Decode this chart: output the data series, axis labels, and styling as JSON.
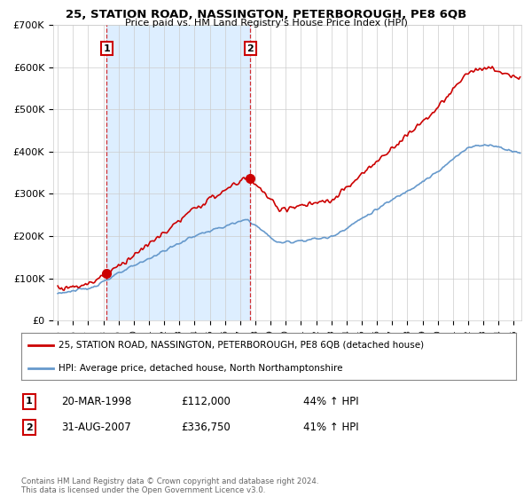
{
  "title": "25, STATION ROAD, NASSINGTON, PETERBOROUGH, PE8 6QB",
  "subtitle": "Price paid vs. HM Land Registry's House Price Index (HPI)",
  "legend_line1": "25, STATION ROAD, NASSINGTON, PETERBOROUGH, PE8 6QB (detached house)",
  "legend_line2": "HPI: Average price, detached house, North Northamptonshire",
  "annotation1_date": "20-MAR-1998",
  "annotation1_price": "£112,000",
  "annotation1_hpi": "44% ↑ HPI",
  "annotation2_date": "31-AUG-2007",
  "annotation2_price": "£336,750",
  "annotation2_hpi": "41% ↑ HPI",
  "footer": "Contains HM Land Registry data © Crown copyright and database right 2024.\nThis data is licensed under the Open Government Licence v3.0.",
  "red_color": "#cc0000",
  "blue_color": "#6699cc",
  "shade_color": "#ddeeff",
  "grid_color": "#cccccc",
  "background_color": "#ffffff",
  "sale1_x": 1998.22,
  "sale1_y": 112000,
  "sale2_x": 2007.67,
  "sale2_y": 336750,
  "ylim_min": 0,
  "ylim_max": 700000,
  "xlim_start": 1994.7,
  "xlim_end": 2025.5,
  "yticks": [
    0,
    100000,
    200000,
    300000,
    400000,
    500000,
    600000,
    700000
  ],
  "yticklabels": [
    "£0",
    "£100K",
    "£200K",
    "£300K",
    "£400K",
    "£500K",
    "£600K",
    "£700K"
  ]
}
